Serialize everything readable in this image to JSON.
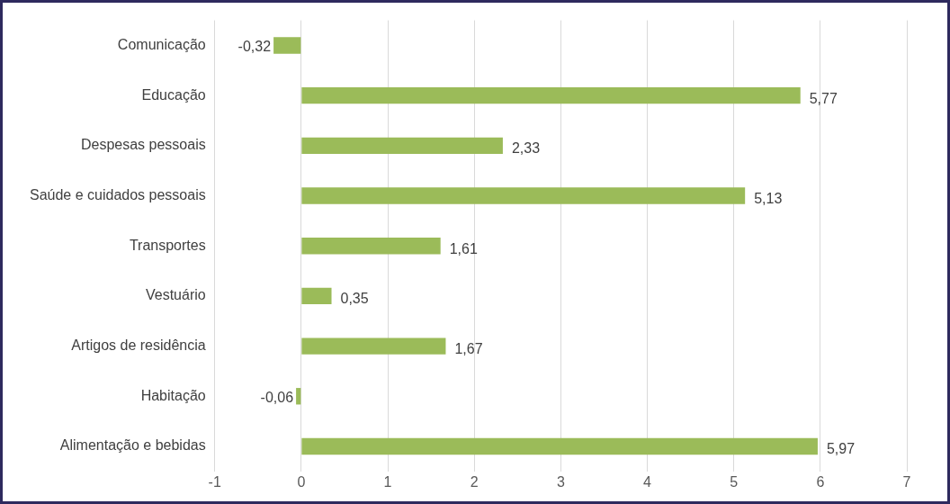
{
  "chart_data": {
    "type": "bar",
    "orientation": "horizontal",
    "categories": [
      "Comunicação",
      "Educação",
      "Despesas pessoais",
      "Saúde e cuidados pessoais",
      "Transportes",
      "Vestuário",
      "Artigos de residência",
      "Habitação",
      "Alimentação e bebidas"
    ],
    "values": [
      -0.32,
      5.77,
      2.33,
      5.13,
      1.61,
      0.35,
      1.67,
      -0.06,
      5.97
    ],
    "value_labels": [
      "-0,32",
      "5,77",
      "2,33",
      "5,13",
      "1,61",
      "0,35",
      "1,67",
      "-0,06",
      "5,97"
    ],
    "color": "#9bbb59",
    "xlim": [
      -1,
      7
    ],
    "xticks": [
      -1,
      0,
      1,
      2,
      3,
      4,
      5,
      6,
      7
    ],
    "grid": "x",
    "legend": false
  }
}
